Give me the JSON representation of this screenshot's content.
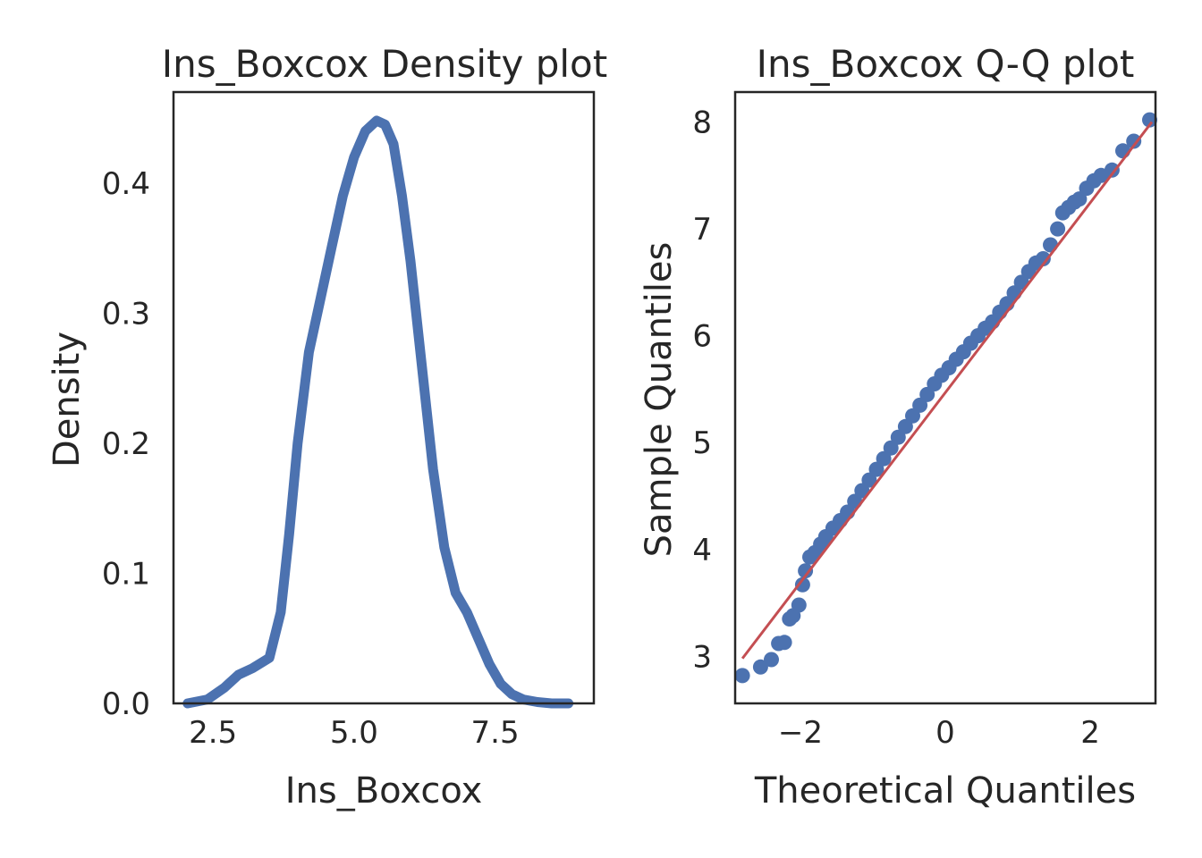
{
  "chart_data": [
    {
      "type": "line",
      "title": "Ins_Boxcox Density plot",
      "xlabel": "Ins_Boxcox",
      "ylabel": "Density",
      "xlim": [
        1.8,
        9.25
      ],
      "ylim": [
        0.0,
        0.47
      ],
      "xticks": [
        2.5,
        5.0,
        7.5
      ],
      "xtick_labels": [
        "2.5",
        "5.0",
        "7.5"
      ],
      "yticks": [
        0.0,
        0.1,
        0.2,
        0.3,
        0.4
      ],
      "ytick_labels": [
        "0.0",
        "0.1",
        "0.2",
        "0.3",
        "0.4"
      ],
      "grid": false,
      "series": [
        {
          "color": "#4c72b0",
          "x": [
            2.05,
            2.4,
            2.7,
            2.95,
            3.2,
            3.5,
            3.7,
            3.85,
            4.0,
            4.2,
            4.4,
            4.6,
            4.8,
            5.0,
            5.2,
            5.4,
            5.55,
            5.7,
            5.85,
            6.0,
            6.2,
            6.4,
            6.6,
            6.8,
            7.0,
            7.2,
            7.4,
            7.6,
            7.8,
            8.0,
            8.25,
            8.5,
            8.8
          ],
          "y": [
            0.0,
            0.003,
            0.012,
            0.022,
            0.027,
            0.035,
            0.07,
            0.13,
            0.2,
            0.27,
            0.31,
            0.35,
            0.39,
            0.42,
            0.44,
            0.448,
            0.445,
            0.43,
            0.39,
            0.34,
            0.26,
            0.18,
            0.12,
            0.085,
            0.07,
            0.05,
            0.03,
            0.015,
            0.007,
            0.003,
            0.001,
            0.0,
            0.0
          ]
        }
      ]
    },
    {
      "type": "scatter",
      "title": "Ins_Boxcox Q-Q plot",
      "xlabel": "Theoretical Quantiles",
      "ylabel": "Sample Quantiles",
      "xlim": [
        -2.9,
        2.9
      ],
      "ylim": [
        2.56,
        8.28
      ],
      "xticks": [
        -2,
        0,
        2
      ],
      "xtick_labels": [
        "−2",
        "0",
        "2"
      ],
      "yticks": [
        3,
        4,
        5,
        6,
        7,
        8
      ],
      "ytick_labels": [
        "3",
        "4",
        "5",
        "6",
        "7",
        "8"
      ],
      "grid": false,
      "reference_line": {
        "color": "#c44e52",
        "x": [
          -2.8,
          2.85
        ],
        "y": [
          2.98,
          8.0
        ]
      },
      "series": [
        {
          "color": "#4c72b0",
          "x": [
            -2.8,
            -2.55,
            -2.4,
            -2.3,
            -2.22,
            -2.15,
            -2.1,
            -2.02,
            -1.97,
            -1.93,
            -1.87,
            -1.8,
            -1.72,
            -1.65,
            -1.55,
            -1.45,
            -1.35,
            -1.25,
            -1.15,
            -1.05,
            -0.95,
            -0.85,
            -0.75,
            -0.65,
            -0.55,
            -0.45,
            -0.35,
            -0.25,
            -0.15,
            -0.05,
            0.05,
            0.15,
            0.25,
            0.35,
            0.45,
            0.55,
            0.65,
            0.75,
            0.85,
            0.95,
            1.05,
            1.15,
            1.25,
            1.35,
            1.45,
            1.55,
            1.62,
            1.7,
            1.78,
            1.85,
            1.95,
            2.05,
            2.15,
            2.3,
            2.45,
            2.6,
            2.82
          ],
          "y": [
            2.82,
            2.9,
            2.97,
            3.12,
            3.13,
            3.35,
            3.38,
            3.48,
            3.67,
            3.8,
            3.93,
            3.97,
            4.05,
            4.12,
            4.2,
            4.27,
            4.35,
            4.45,
            4.55,
            4.65,
            4.75,
            4.85,
            4.95,
            5.05,
            5.15,
            5.25,
            5.35,
            5.45,
            5.55,
            5.63,
            5.7,
            5.78,
            5.85,
            5.93,
            6.0,
            6.07,
            6.13,
            6.22,
            6.3,
            6.4,
            6.5,
            6.6,
            6.68,
            6.72,
            6.85,
            7.0,
            7.15,
            7.2,
            7.25,
            7.28,
            7.38,
            7.45,
            7.5,
            7.55,
            7.73,
            7.82,
            8.02
          ]
        }
      ]
    }
  ]
}
